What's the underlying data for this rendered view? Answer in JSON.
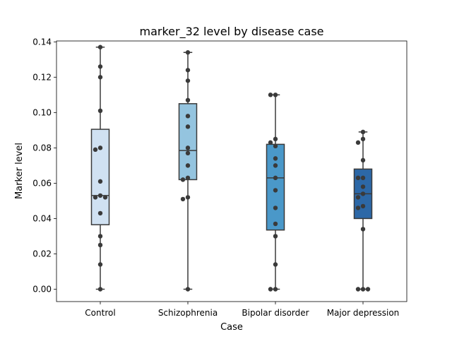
{
  "chart_data": {
    "type": "box",
    "title": "marker_32 level by disease case",
    "xlabel": "Case",
    "ylabel": "Marker level",
    "ylim": [
      -0.007,
      0.1405
    ],
    "yticks": [
      "0.00",
      "0.02",
      "0.04",
      "0.06",
      "0.08",
      "0.10",
      "0.12",
      "0.14"
    ],
    "categories": [
      "Control",
      "Schizophrenia",
      "Bipolar disorder",
      "Major depression"
    ],
    "colors": [
      "#d0e1f2",
      "#94c4df",
      "#4a98c9",
      "#2c68a7"
    ],
    "boxes": [
      {
        "q1": 0.0365,
        "median": 0.053,
        "q3": 0.0905,
        "whisker_low": 0.0,
        "whisker_high": 0.137
      },
      {
        "q1": 0.062,
        "median": 0.0785,
        "q3": 0.105,
        "whisker_low": 0.0,
        "whisker_high": 0.134
      },
      {
        "q1": 0.0335,
        "median": 0.063,
        "q3": 0.082,
        "whisker_low": 0.0,
        "whisker_high": 0.11
      },
      {
        "q1": 0.04,
        "median": 0.054,
        "q3": 0.068,
        "whisker_low": 0.0,
        "whisker_high": 0.089
      }
    ],
    "points": [
      [
        0.137,
        0.126,
        0.12,
        0.101,
        0.08,
        0.079,
        0.061,
        0.053,
        0.052,
        0.052,
        0.043,
        0.03,
        0.025,
        0.014,
        0.0
      ],
      [
        0.134,
        0.124,
        0.118,
        0.107,
        0.098,
        0.092,
        0.08,
        0.077,
        0.07,
        0.063,
        0.062,
        0.052,
        0.051,
        0.0
      ],
      [
        0.11,
        0.11,
        0.085,
        0.083,
        0.081,
        0.074,
        0.07,
        0.063,
        0.056,
        0.046,
        0.037,
        0.03,
        0.014,
        0.0,
        0.0
      ],
      [
        0.089,
        0.085,
        0.083,
        0.073,
        0.063,
        0.063,
        0.058,
        0.054,
        0.052,
        0.047,
        0.046,
        0.034,
        0.0,
        0.0,
        0.0
      ]
    ]
  }
}
